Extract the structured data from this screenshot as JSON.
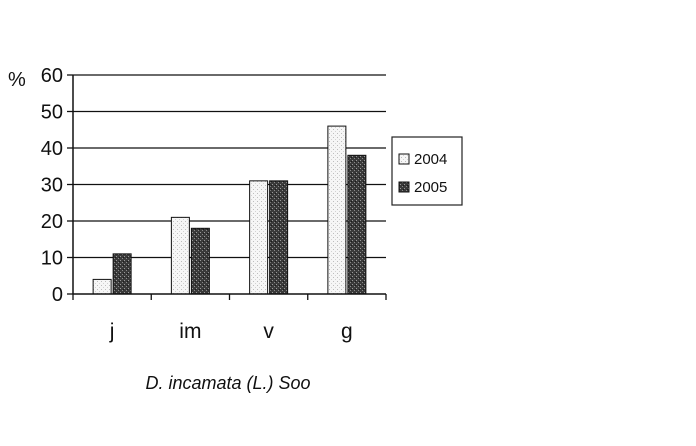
{
  "chart_data": {
    "type": "bar",
    "categories": [
      "j",
      "im",
      "v",
      "g"
    ],
    "series": [
      {
        "name": "2004",
        "values": [
          4,
          21,
          31,
          46
        ],
        "color": "#f4f4f4"
      },
      {
        "name": "2005",
        "values": [
          11,
          18,
          31,
          38
        ],
        "color": "#3a3a3a"
      }
    ],
    "ylabel": "%",
    "xlabel": "D. incamata (L.) Soo",
    "ylim": [
      0,
      60
    ],
    "yticks": [
      0,
      10,
      20,
      30,
      40,
      50,
      60
    ],
    "grid": true,
    "legend_position": "right"
  }
}
